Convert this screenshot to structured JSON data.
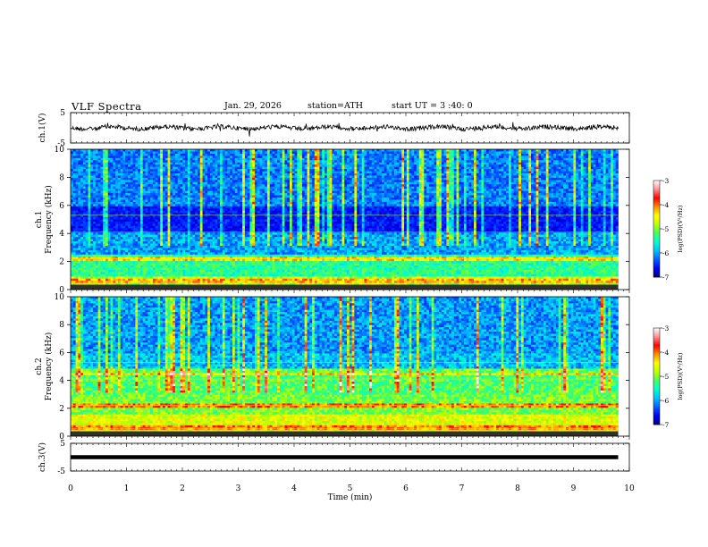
{
  "header": {
    "title": "VLF  Spectra",
    "date": "Jan. 29, 2026",
    "station": "station=ATH",
    "start": "start  UT =   3 :40: 0"
  },
  "chart_data": [
    {
      "type": "line",
      "name": "ch1-waveform",
      "ylabel": "ch.1(V)",
      "ylim": [
        -5,
        5
      ],
      "yticks": [
        "5",
        "-5"
      ],
      "x_range_min": [
        0,
        9.8
      ],
      "baseline": 0,
      "note_level": "noisy trace around 0 V with amplitude about 1 V"
    },
    {
      "type": "heatmap",
      "name": "ch1-spectrogram",
      "ylabel": "ch.1\nFrequency (kHz)",
      "ylabel_lines": [
        "ch.1",
        "Frequency (kHz)"
      ],
      "ylim": [
        0,
        10
      ],
      "yticks": [
        "0",
        "2",
        "4",
        "6",
        "8",
        "10"
      ],
      "xlim": [
        0,
        10
      ],
      "colorbar": {
        "label": "log(PSD)(V²/Hz)",
        "range": [
          -7,
          -3
        ],
        "ticks": [
          "-3",
          "-4",
          "-5",
          "-6",
          "-7"
        ]
      }
    },
    {
      "type": "heatmap",
      "name": "ch2-spectrogram",
      "ylabel": "ch.2\nFrequency (kHz)",
      "ylabel_lines": [
        "ch.2",
        "Frequency (kHz)"
      ],
      "ylim": [
        0,
        10
      ],
      "yticks": [
        "0",
        "2",
        "4",
        "6",
        "8",
        "10"
      ],
      "xlim": [
        0,
        10
      ],
      "colorbar": {
        "label": "log(PSD)(V²/Hz)",
        "range": [
          -7,
          -3
        ],
        "ticks": [
          "-3",
          "-4",
          "-5",
          "-6",
          "-7"
        ]
      }
    },
    {
      "type": "line",
      "name": "ch3-waveform",
      "ylabel": "ch.3(V)",
      "ylim": [
        -5,
        5
      ],
      "yticks": [
        "5",
        "-5"
      ],
      "x_range_min": [
        0,
        9.8
      ],
      "baseline": 0
    }
  ],
  "xaxis": {
    "label": "Time  (min)",
    "ticks": [
      "0",
      "1",
      "2",
      "3",
      "4",
      "5",
      "6",
      "7",
      "8",
      "9",
      "10"
    ],
    "range": [
      0,
      10
    ]
  },
  "colors": {
    "trace": "#000000",
    "colormap": [
      "#00007a",
      "#0000ff",
      "#0060ff",
      "#00c0ff",
      "#00ffd0",
      "#40ff60",
      "#c0ff00",
      "#ffff00",
      "#ff9000",
      "#ff0000",
      "#ff9090",
      "#ffffff"
    ]
  }
}
